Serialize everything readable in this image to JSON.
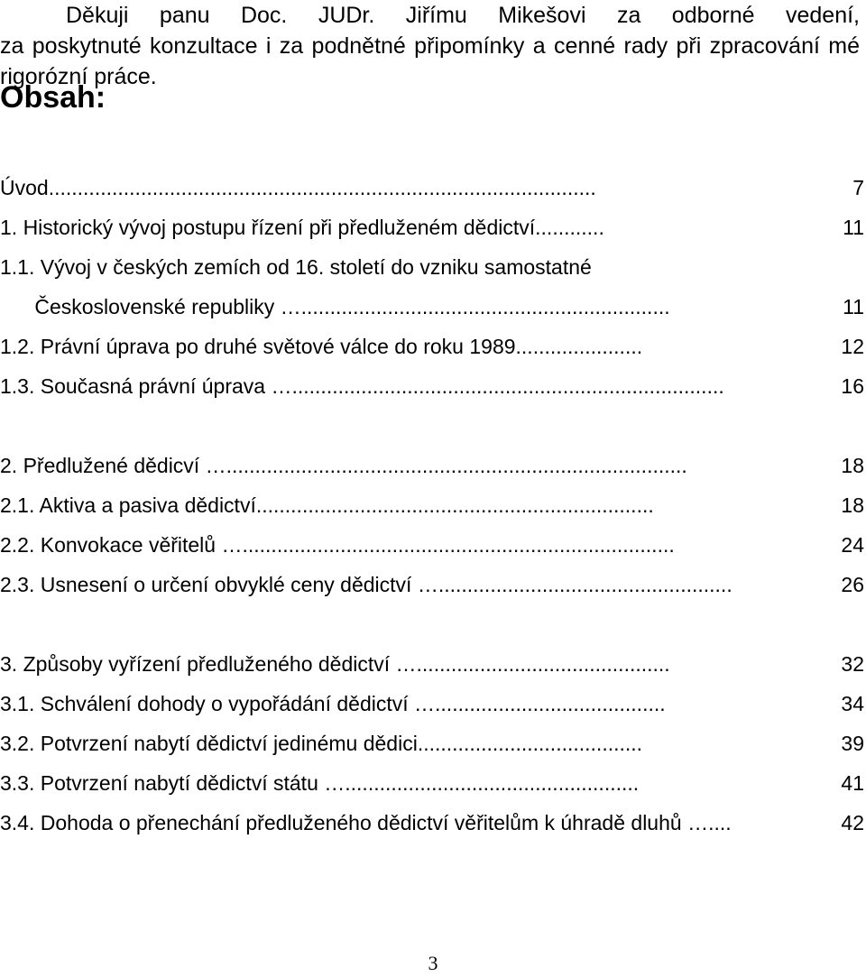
{
  "acknowledgement": {
    "line1": "Děkuji panu Doc. JUDr. Jiřímu Mikešovi za odborné vedení,",
    "rest": "za poskytnuté konzultace i za podnětné připomínky a cenné rady při zpracování mé rigorózní práce."
  },
  "toc_heading": "Obsah:",
  "toc": [
    {
      "title": "Úvod",
      "dots": "...............................................................................................",
      "page": "7"
    },
    {
      "title": "1. Historický vývoj postupu řízení při předluženém dědictví",
      "dots": "............",
      "page": "11"
    },
    {
      "title": "1.1. Vývoj v českých zemích od 16. století do vzniku samostatné",
      "dots": "",
      "page": ""
    },
    {
      "title": "      Československé republiky ",
      "dots": "…................................................................",
      "page": "11"
    },
    {
      "title": "1.2. Právní úprava po druhé světové válce do roku 1989",
      "dots": "......................",
      "page": "12"
    },
    {
      "title": "1.3. Současná právní úprava ",
      "dots": "…...........................................................................",
      "page": "16"
    },
    {
      "title": "2. Předlužené dědicví ",
      "dots": "…................................................................................",
      "page": "18"
    },
    {
      "title": "2.1. Aktiva a pasiva dědictví",
      "dots": ".....................................................................",
      "page": "18"
    },
    {
      "title": "2.2. Konvokace věřitelů ",
      "dots": "…...........................................................................",
      "page": "24"
    },
    {
      "title": "2.3. Usnesení o určení obvyklé ceny dědictví ",
      "dots": "…...................................................",
      "page": "26"
    },
    {
      "title": "3. Způsoby vyřízení předluženého dědictví ",
      "dots": "…............................................",
      "page": "32"
    },
    {
      "title": "3.1. Schválení dohody o vypořádání dědictví ",
      "dots": "…........................................",
      "page": "34"
    },
    {
      "title": "3.2. Potvrzení nabytí dědictví jedinému dědici",
      "dots": ".......................................",
      "page": "39"
    },
    {
      "title": "3.3. Potvrzení nabytí dědictví státu ",
      "dots": "…...................................................",
      "page": "41"
    },
    {
      "title": "3.4. Dohoda o přenechání předluženého dědictví věřitelům k úhradě dluhů ",
      "dots": "…....",
      "page": "42"
    }
  ],
  "page_number": "3"
}
